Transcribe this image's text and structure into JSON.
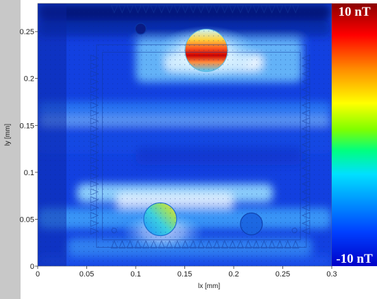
{
  "chart_data": {
    "type": "heatmap",
    "title": "",
    "xlabel": "lx [mm]",
    "ylabel": "ly [mm]",
    "xlim": [
      0,
      0.3
    ],
    "ylim": [
      0,
      0.28
    ],
    "x_ticks": [
      "0",
      "0.05",
      "0.1",
      "0.15",
      "0.2",
      "0.25",
      "0.3"
    ],
    "y_ticks": [
      "0",
      "0.05",
      "0.1",
      "0.15",
      "0.2",
      "0.25"
    ],
    "colorbar": {
      "max_label": "10 nT",
      "min_label": "-10 nT",
      "range": [
        -10,
        10
      ],
      "unit": "nT",
      "colors": [
        "#8b0000",
        "#ff0000",
        "#ff8c00",
        "#ffff00",
        "#7fff00",
        "#00ff80",
        "#00e0ff",
        "#0090ff",
        "#0040ff",
        "#0000c8"
      ]
    },
    "features": [
      {
        "kind": "hot-spot",
        "x": 0.172,
        "y": 0.23,
        "value": 10
      },
      {
        "kind": "warm-spot",
        "x": 0.125,
        "y": 0.05,
        "value": 4
      },
      {
        "kind": "hole",
        "x": 0.218,
        "y": 0.045,
        "value": -3
      },
      {
        "kind": "hole",
        "x": 0.105,
        "y": 0.253,
        "value": -6
      }
    ]
  }
}
